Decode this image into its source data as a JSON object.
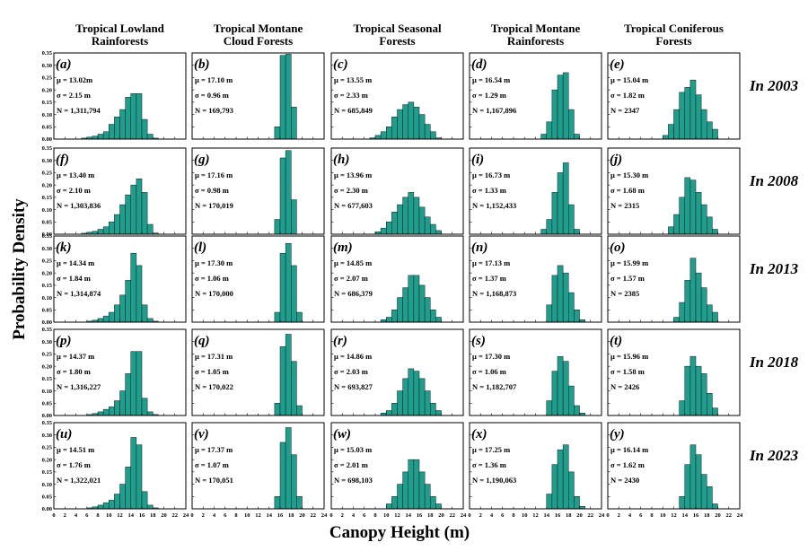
{
  "axis": {
    "xlabel": "Canopy Height   (m)",
    "ylabel": "Probability Density",
    "xticks": [
      0,
      2,
      4,
      6,
      8,
      10,
      12,
      14,
      16,
      18,
      20,
      22,
      24
    ],
    "yticks": [
      "0.00",
      "0.05",
      "0.10",
      "0.15",
      "0.20",
      "0.25",
      "0.30",
      "0.35"
    ]
  },
  "columns": [
    {
      "line1": "Tropical Lowland",
      "line2": "Rainforests"
    },
    {
      "line1": "Tropical Montane",
      "line2": "Cloud Forests"
    },
    {
      "line1": "Tropical Seasonal",
      "line2": "Forests"
    },
    {
      "line1": "Tropical Montane",
      "line2": "Rainforests"
    },
    {
      "line1": "Tropical Coniferous",
      "line2": "Forests"
    }
  ],
  "rows": [
    "In 2003",
    "In 2008",
    "In 2013",
    "In 2018",
    "In 2023"
  ],
  "colors": {
    "bar": "#1f9e8e",
    "edge": "#1a1a1a"
  },
  "chart_data": {
    "type": "bar",
    "subtype": "histogram-grid",
    "xlim": [
      0,
      24
    ],
    "ylim": [
      0,
      0.35
    ],
    "bin_width": 1,
    "panels": [
      {
        "letter": "(a)",
        "mu": "μ = 13.02m",
        "sigma": "σ = 2.15 m",
        "n": "N = 1,311,794",
        "bins_x": [
          5,
          6,
          7,
          8,
          9,
          10,
          11,
          12,
          13,
          14,
          15,
          16,
          17,
          18
        ],
        "bins_y": [
          0.004,
          0.008,
          0.012,
          0.02,
          0.03,
          0.06,
          0.09,
          0.12,
          0.17,
          0.185,
          0.185,
          0.08,
          0.02,
          0.004
        ]
      },
      {
        "letter": "(b)",
        "mu": "μ = 17.10 m",
        "sigma": "σ = 0.96 m",
        "n": "N = 169,793",
        "bins_x": [
          15,
          16,
          17,
          18
        ],
        "bins_y": [
          0.05,
          0.34,
          0.345,
          0.13
        ]
      },
      {
        "letter": "(c)",
        "mu": "μ = 13.55 m",
        "sigma": "σ = 2.33 m",
        "n": "N = 685,849",
        "bins_x": [
          7,
          8,
          9,
          10,
          11,
          12,
          13,
          14,
          15,
          16,
          17,
          18,
          19
        ],
        "bins_y": [
          0.005,
          0.015,
          0.03,
          0.05,
          0.09,
          0.12,
          0.14,
          0.15,
          0.13,
          0.1,
          0.06,
          0.03,
          0.005
        ]
      },
      {
        "letter": "(d)",
        "mu": "μ = 16.54 m",
        "sigma": "σ = 1.29 m",
        "n": "N = 1,167,896",
        "bins_x": [
          13,
          14,
          15,
          16,
          17,
          18,
          19
        ],
        "bins_y": [
          0.02,
          0.07,
          0.2,
          0.26,
          0.27,
          0.12,
          0.02
        ]
      },
      {
        "letter": "(e)",
        "mu": "μ = 15.04 m",
        "sigma": "σ = 1.82 m",
        "n": "N = 2347",
        "bins_x": [
          10,
          11,
          12,
          13,
          14,
          15,
          16,
          17,
          18,
          19
        ],
        "bins_y": [
          0.015,
          0.06,
          0.12,
          0.19,
          0.21,
          0.24,
          0.18,
          0.12,
          0.07,
          0.04
        ]
      },
      {
        "letter": "(f)",
        "mu": "μ = 13.40 m",
        "sigma": "σ = 2.10 m",
        "n": "N = 1,303,836",
        "bins_x": [
          5,
          6,
          7,
          8,
          9,
          10,
          11,
          12,
          13,
          14,
          15,
          16,
          17,
          18
        ],
        "bins_y": [
          0.004,
          0.008,
          0.012,
          0.02,
          0.03,
          0.05,
          0.08,
          0.12,
          0.16,
          0.2,
          0.225,
          0.17,
          0.04,
          0.005
        ]
      },
      {
        "letter": "(g)",
        "mu": "μ = 17.16 m",
        "sigma": "σ = 0.98 m",
        "n": "N = 170,019",
        "bins_x": [
          15,
          16,
          17,
          18
        ],
        "bins_y": [
          0.06,
          0.31,
          0.34,
          0.14
        ]
      },
      {
        "letter": "(h)",
        "mu": "μ = 13.96 m",
        "sigma": "σ = 2.30 m",
        "n": "N = 677,603",
        "bins_x": [
          8,
          9,
          10,
          11,
          12,
          13,
          14,
          15,
          16,
          17,
          18,
          19
        ],
        "bins_y": [
          0.01,
          0.025,
          0.05,
          0.09,
          0.12,
          0.15,
          0.17,
          0.15,
          0.11,
          0.07,
          0.04,
          0.015
        ]
      },
      {
        "letter": "(i)",
        "mu": "μ = 16.73 m",
        "sigma": "σ = 1.33 m",
        "n": "N = 1,152,433",
        "bins_x": [
          13,
          14,
          15,
          16,
          17,
          18,
          19
        ],
        "bins_y": [
          0.02,
          0.06,
          0.17,
          0.25,
          0.29,
          0.12,
          0.02
        ]
      },
      {
        "letter": "(j)",
        "mu": "μ = 15.30 m",
        "sigma": "σ = 1.68 m",
        "n": "N = 2315",
        "bins_x": [
          11,
          12,
          13,
          14,
          15,
          16,
          17,
          18,
          19
        ],
        "bins_y": [
          0.03,
          0.08,
          0.15,
          0.23,
          0.22,
          0.17,
          0.12,
          0.07,
          0.02
        ]
      },
      {
        "letter": "(k)",
        "mu": "μ = 14.34 m",
        "sigma": "σ = 1.84 m",
        "n": "N = 1,314,874",
        "bins_x": [
          6,
          7,
          8,
          9,
          10,
          11,
          12,
          13,
          14,
          15,
          16,
          17,
          18
        ],
        "bins_y": [
          0.004,
          0.008,
          0.015,
          0.025,
          0.04,
          0.07,
          0.11,
          0.17,
          0.28,
          0.23,
          0.07,
          0.015,
          0.004
        ]
      },
      {
        "letter": "(l)",
        "mu": "μ = 17.30 m",
        "sigma": "σ = 1.06 m",
        "n": "N = 170,000",
        "bins_x": [
          15,
          16,
          17,
          18,
          19
        ],
        "bins_y": [
          0.04,
          0.28,
          0.32,
          0.23,
          0.04
        ]
      },
      {
        "letter": "(m)",
        "mu": "μ = 14.85 m",
        "sigma": "σ = 2.07 m",
        "n": "N = 686,379",
        "bins_x": [
          9,
          10,
          11,
          12,
          13,
          14,
          15,
          16,
          17,
          18,
          19
        ],
        "bins_y": [
          0.01,
          0.02,
          0.05,
          0.1,
          0.14,
          0.19,
          0.19,
          0.15,
          0.1,
          0.05,
          0.02
        ]
      },
      {
        "letter": "(n)",
        "mu": "μ = 17.13 m",
        "sigma": "σ = 1.37 m",
        "n": "N = 1,168,873",
        "bins_x": [
          14,
          15,
          16,
          17,
          18,
          19,
          20
        ],
        "bins_y": [
          0.07,
          0.19,
          0.23,
          0.2,
          0.12,
          0.05,
          0.01
        ]
      },
      {
        "letter": "(o)",
        "mu": "μ = 15.99 m",
        "sigma": "σ = 1.57 m",
        "n": "N = 2385",
        "bins_x": [
          12,
          13,
          14,
          15,
          16,
          17,
          18,
          19
        ],
        "bins_y": [
          0.02,
          0.08,
          0.17,
          0.26,
          0.2,
          0.14,
          0.07,
          0.04
        ]
      },
      {
        "letter": "(p)",
        "mu": "μ = 14.37 m",
        "sigma": "σ = 1.80 m",
        "n": "N = 1,316,227",
        "bins_x": [
          6,
          7,
          8,
          9,
          10,
          11,
          12,
          13,
          14,
          15,
          16,
          17,
          18
        ],
        "bins_y": [
          0.004,
          0.008,
          0.015,
          0.025,
          0.035,
          0.06,
          0.1,
          0.17,
          0.26,
          0.26,
          0.07,
          0.015,
          0.004
        ]
      },
      {
        "letter": "(q)",
        "mu": "μ = 17.31 m",
        "sigma": "σ = 1.05 m",
        "n": "N = 170,022",
        "bins_x": [
          15,
          16,
          17,
          18,
          19
        ],
        "bins_y": [
          0.05,
          0.28,
          0.33,
          0.22,
          0.04
        ]
      },
      {
        "letter": "(r)",
        "mu": "μ = 14.86 m",
        "sigma": "σ = 2.03 m",
        "n": "N = 693,827",
        "bins_x": [
          9,
          10,
          11,
          12,
          13,
          14,
          15,
          16,
          17,
          18,
          19
        ],
        "bins_y": [
          0.01,
          0.02,
          0.05,
          0.1,
          0.15,
          0.19,
          0.18,
          0.15,
          0.1,
          0.05,
          0.02
        ]
      },
      {
        "letter": "(s)",
        "mu": "μ = 17.30 m",
        "sigma": "σ = 1.06 m",
        "n": "N = 1,182,707",
        "bins_x": [
          14,
          15,
          16,
          17,
          18,
          19,
          20
        ],
        "bins_y": [
          0.06,
          0.18,
          0.24,
          0.22,
          0.12,
          0.04,
          0.01
        ]
      },
      {
        "letter": "(t)",
        "mu": "μ = 15.96 m",
        "sigma": "σ = 1.58 m",
        "n": "N = 2426",
        "bins_x": [
          13,
          14,
          15,
          16,
          17,
          18,
          19
        ],
        "bins_y": [
          0.06,
          0.2,
          0.24,
          0.2,
          0.17,
          0.09,
          0.03
        ]
      },
      {
        "letter": "(u)",
        "mu": "μ = 14.51 m",
        "sigma": "σ = 1.76 m",
        "n": "N = 1,322,021",
        "bins_x": [
          6,
          7,
          8,
          9,
          10,
          11,
          12,
          13,
          14,
          15,
          16,
          17,
          18
        ],
        "bins_y": [
          0.004,
          0.008,
          0.015,
          0.025,
          0.035,
          0.06,
          0.1,
          0.17,
          0.29,
          0.26,
          0.07,
          0.015,
          0.004
        ]
      },
      {
        "letter": "(v)",
        "mu": "μ = 17.37 m",
        "sigma": "σ = 1.07 m",
        "n": "N = 170,051",
        "bins_x": [
          15,
          16,
          17,
          18,
          19
        ],
        "bins_y": [
          0.05,
          0.27,
          0.33,
          0.22,
          0.05
        ]
      },
      {
        "letter": "(w)",
        "mu": "μ = 15.03 m",
        "sigma": "σ = 2.01 m",
        "n": "N = 698,103",
        "bins_x": [
          10,
          11,
          12,
          13,
          14,
          15,
          16,
          17,
          18,
          19
        ],
        "bins_y": [
          0.02,
          0.05,
          0.1,
          0.15,
          0.2,
          0.2,
          0.15,
          0.1,
          0.05,
          0.02
        ]
      },
      {
        "letter": "(x)",
        "mu": "μ = 17.25 m",
        "sigma": "σ = 1.36 m",
        "n": "N = 1,190,063",
        "bins_x": [
          14,
          15,
          16,
          17,
          18,
          19,
          20
        ],
        "bins_y": [
          0.06,
          0.18,
          0.24,
          0.26,
          0.15,
          0.05,
          0.01
        ]
      },
      {
        "letter": "(y)",
        "mu": "μ = 16.14 m",
        "sigma": "σ = 1.62 m",
        "n": "N = 2430",
        "bins_x": [
          13,
          14,
          15,
          16,
          17,
          18,
          19
        ],
        "bins_y": [
          0.05,
          0.18,
          0.26,
          0.22,
          0.14,
          0.09,
          0.02
        ]
      }
    ]
  }
}
